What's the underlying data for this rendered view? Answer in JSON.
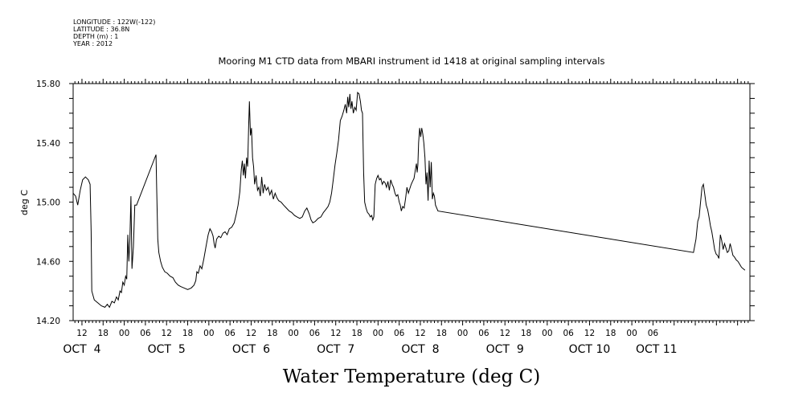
{
  "header": {
    "longitude": "LONGITUDE : 122W(-122)",
    "latitude": "LATITUDE : 36.8N",
    "depth": "DEPTH (m) : 1",
    "year": "YEAR : 2012",
    "title": "Mooring M1 CTD data from MBARI instrument id 1418 at original sampling intervals"
  },
  "chart_data": {
    "type": "line",
    "title": "Mooring M1 CTD data from MBARI instrument id 1418 at original sampling intervals",
    "xlabel": "Water Temperature (deg C)",
    "ylabel": "deg C",
    "xlim_hours": [
      9.5,
      201.5
    ],
    "ylim": [
      14.2,
      15.8
    ],
    "yticks": [
      14.2,
      14.6,
      15.0,
      15.4,
      15.8
    ],
    "ytick_labels": [
      "14.20",
      "14.60",
      "15.00",
      "15.40",
      "15.80"
    ],
    "xtick_labels": [
      "12",
      "18",
      "00",
      "06",
      "12",
      "18",
      "00",
      "06",
      "12",
      "18",
      "00",
      "06",
      "12",
      "18",
      "00",
      "06",
      "12",
      "18",
      "00",
      "06",
      "12",
      "18",
      "00",
      "06",
      "12",
      "18",
      "00",
      "06"
    ],
    "day_labels": [
      "OCT  4",
      "OCT  5",
      "OCT  6",
      "OCT  7",
      "OCT  8",
      "OCT  9",
      "OCT 10",
      "OCT 11"
    ],
    "series": [
      {
        "values": [
          [
            9.5,
            15.06
          ],
          [
            10.2,
            15.04
          ],
          [
            10.8,
            14.98
          ],
          [
            11.5,
            15.08
          ],
          [
            12.2,
            15.15
          ],
          [
            13,
            15.17
          ],
          [
            13.8,
            15.15
          ],
          [
            14.3,
            15.12
          ],
          [
            14.6,
            14.8
          ],
          [
            14.8,
            14.4
          ],
          [
            15.5,
            14.34
          ],
          [
            16.5,
            14.32
          ],
          [
            17.5,
            14.3
          ],
          [
            18.5,
            14.29
          ],
          [
            19.2,
            14.31
          ],
          [
            19.8,
            14.29
          ],
          [
            20.5,
            14.33
          ],
          [
            21.2,
            14.32
          ],
          [
            21.8,
            14.36
          ],
          [
            22.3,
            14.34
          ],
          [
            22.8,
            14.4
          ],
          [
            23.2,
            14.39
          ],
          [
            23.6,
            14.46
          ],
          [
            24,
            14.44
          ],
          [
            24.4,
            14.5
          ],
          [
            24.7,
            14.48
          ],
          [
            25,
            14.78
          ],
          [
            25.3,
            14.6
          ],
          [
            25.6,
            14.75
          ],
          [
            25.9,
            15.04
          ],
          [
            26.2,
            14.55
          ],
          [
            26.6,
            14.7
          ],
          [
            27,
            14.98
          ],
          [
            27.5,
            14.98
          ],
          [
            33,
            15.32
          ],
          [
            33.2,
            15.1
          ],
          [
            33.5,
            14.75
          ],
          [
            33.8,
            14.66
          ],
          [
            34.3,
            14.6
          ],
          [
            34.8,
            14.56
          ],
          [
            35.5,
            14.53
          ],
          [
            36.2,
            14.52
          ],
          [
            37,
            14.5
          ],
          [
            37.8,
            14.49
          ],
          [
            38.5,
            14.46
          ],
          [
            39.3,
            14.44
          ],
          [
            40,
            14.43
          ],
          [
            41,
            14.42
          ],
          [
            42,
            14.41
          ],
          [
            43,
            14.42
          ],
          [
            43.8,
            14.44
          ],
          [
            44.3,
            14.47
          ],
          [
            44.6,
            14.53
          ],
          [
            45,
            14.52
          ],
          [
            45.5,
            14.57
          ],
          [
            46,
            14.55
          ],
          [
            46.6,
            14.62
          ],
          [
            47.2,
            14.7
          ],
          [
            47.8,
            14.78
          ],
          [
            48.3,
            14.82
          ],
          [
            48.8,
            14.8
          ],
          [
            49.2,
            14.77
          ],
          [
            49.5,
            14.72
          ],
          [
            49.8,
            14.69
          ],
          [
            50.2,
            14.75
          ],
          [
            50.8,
            14.77
          ],
          [
            51.4,
            14.76
          ],
          [
            52,
            14.79
          ],
          [
            52.6,
            14.8
          ],
          [
            53.2,
            14.78
          ],
          [
            53.8,
            14.82
          ],
          [
            54.5,
            14.83
          ],
          [
            55.2,
            14.86
          ],
          [
            55.8,
            14.92
          ],
          [
            56.3,
            14.98
          ],
          [
            56.8,
            15.07
          ],
          [
            57.2,
            15.22
          ],
          [
            57.5,
            15.28
          ],
          [
            57.8,
            15.18
          ],
          [
            58.1,
            15.26
          ],
          [
            58.4,
            15.16
          ],
          [
            58.7,
            15.3
          ],
          [
            59,
            15.24
          ],
          [
            59.3,
            15.52
          ],
          [
            59.5,
            15.68
          ],
          [
            59.8,
            15.45
          ],
          [
            60.1,
            15.5
          ],
          [
            60.4,
            15.3
          ],
          [
            60.7,
            15.24
          ],
          [
            61,
            15.12
          ],
          [
            61.4,
            15.18
          ],
          [
            61.8,
            15.08
          ],
          [
            62.2,
            15.1
          ],
          [
            62.6,
            15.04
          ],
          [
            63,
            15.17
          ],
          [
            63.4,
            15.06
          ],
          [
            63.8,
            15.12
          ],
          [
            64.3,
            15.08
          ],
          [
            64.8,
            15.1
          ],
          [
            65.3,
            15.05
          ],
          [
            65.8,
            15.08
          ],
          [
            66.3,
            15.02
          ],
          [
            66.8,
            15.06
          ],
          [
            67.3,
            15.03
          ],
          [
            67.8,
            15.01
          ],
          [
            68.5,
            15
          ],
          [
            69.2,
            14.98
          ],
          [
            70,
            14.96
          ],
          [
            70.8,
            14.94
          ],
          [
            71.5,
            14.93
          ],
          [
            72.3,
            14.91
          ],
          [
            73,
            14.9
          ],
          [
            73.8,
            14.89
          ],
          [
            74.5,
            14.9
          ],
          [
            75.2,
            14.94
          ],
          [
            75.8,
            14.96
          ],
          [
            76.5,
            14.92
          ],
          [
            77,
            14.88
          ],
          [
            77.5,
            14.86
          ],
          [
            78.2,
            14.87
          ],
          [
            79,
            14.89
          ],
          [
            79.8,
            14.9
          ],
          [
            80.5,
            14.93
          ],
          [
            81.2,
            14.95
          ],
          [
            81.8,
            14.97
          ],
          [
            82.3,
            15
          ],
          [
            82.8,
            15.06
          ],
          [
            83.3,
            15.15
          ],
          [
            83.8,
            15.25
          ],
          [
            84.3,
            15.33
          ],
          [
            84.8,
            15.42
          ],
          [
            85.3,
            15.55
          ],
          [
            85.8,
            15.58
          ],
          [
            86.3,
            15.62
          ],
          [
            86.7,
            15.66
          ],
          [
            87.1,
            15.6
          ],
          [
            87.4,
            15.71
          ],
          [
            87.7,
            15.64
          ],
          [
            88,
            15.73
          ],
          [
            88.3,
            15.63
          ],
          [
            88.6,
            15.68
          ],
          [
            89,
            15.6
          ],
          [
            89.4,
            15.64
          ],
          [
            89.8,
            15.62
          ],
          [
            90.2,
            15.74
          ],
          [
            90.6,
            15.73
          ],
          [
            91,
            15.68
          ],
          [
            91.3,
            15.62
          ],
          [
            91.6,
            15.6
          ],
          [
            91.9,
            15.2
          ],
          [
            92.2,
            15
          ],
          [
            92.6,
            14.96
          ],
          [
            93,
            14.93
          ],
          [
            93.4,
            14.92
          ],
          [
            93.8,
            14.9
          ],
          [
            94.2,
            14.91
          ],
          [
            94.5,
            14.88
          ],
          [
            94.8,
            14.9
          ],
          [
            95.2,
            15.12
          ],
          [
            95.6,
            15.16
          ],
          [
            96,
            15.18
          ],
          [
            96.4,
            15.15
          ],
          [
            96.8,
            15.16
          ],
          [
            97.2,
            15.12
          ],
          [
            97.6,
            15.14
          ],
          [
            98,
            15.13
          ],
          [
            98.4,
            15.1
          ],
          [
            98.8,
            15.14
          ],
          [
            99.2,
            15.08
          ],
          [
            99.6,
            15.15
          ],
          [
            100,
            15.12
          ],
          [
            100.4,
            15.1
          ],
          [
            100.8,
            15.06
          ],
          [
            101.2,
            15.04
          ],
          [
            101.6,
            15.05
          ],
          [
            102,
            15
          ],
          [
            102.3,
            14.98
          ],
          [
            102.6,
            14.94
          ],
          [
            103,
            14.97
          ],
          [
            103.4,
            14.96
          ],
          [
            103.8,
            15.02
          ],
          [
            104.2,
            15.1
          ],
          [
            104.6,
            15.06
          ],
          [
            105,
            15.09
          ],
          [
            105.4,
            15.12
          ],
          [
            105.8,
            15.14
          ],
          [
            106.2,
            15.16
          ],
          [
            106.6,
            15.22
          ],
          [
            106.9,
            15.26
          ],
          [
            107.1,
            15.2
          ],
          [
            107.3,
            15.25
          ],
          [
            107.5,
            15.4
          ],
          [
            107.8,
            15.5
          ],
          [
            108.1,
            15.44
          ],
          [
            108.4,
            15.5
          ],
          [
            108.7,
            15.46
          ],
          [
            109,
            15.4
          ],
          [
            109.3,
            15.3
          ],
          [
            109.6,
            15.12
          ],
          [
            109.9,
            15.2
          ],
          [
            110.2,
            15.01
          ],
          [
            110.5,
            15.28
          ],
          [
            110.8,
            15.1
          ],
          [
            111.1,
            15.27
          ],
          [
            111.4,
            15.02
          ],
          [
            111.7,
            15.06
          ],
          [
            112,
            15.04
          ],
          [
            112.3,
            14.98
          ],
          [
            113,
            14.94
          ],
          [
            185.5,
            14.66
          ],
          [
            186.2,
            14.75
          ],
          [
            186.7,
            14.87
          ],
          [
            187.1,
            14.9
          ],
          [
            187.5,
            15.0
          ],
          [
            187.9,
            15.1
          ],
          [
            188.3,
            15.12
          ],
          [
            188.7,
            15.05
          ],
          [
            189.1,
            14.98
          ],
          [
            189.5,
            14.95
          ],
          [
            189.9,
            14.9
          ],
          [
            190.3,
            14.84
          ],
          [
            190.7,
            14.8
          ],
          [
            191.1,
            14.74
          ],
          [
            191.5,
            14.68
          ],
          [
            191.9,
            14.65
          ],
          [
            192.3,
            14.64
          ],
          [
            192.7,
            14.62
          ],
          [
            193.1,
            14.78
          ],
          [
            193.5,
            14.74
          ],
          [
            193.9,
            14.68
          ],
          [
            194.3,
            14.72
          ],
          [
            194.7,
            14.69
          ],
          [
            195.1,
            14.66
          ],
          [
            195.5,
            14.67
          ],
          [
            195.9,
            14.72
          ],
          [
            196.3,
            14.68
          ],
          [
            196.7,
            14.64
          ],
          [
            197.1,
            14.63
          ],
          [
            197.6,
            14.61
          ],
          [
            198.1,
            14.6
          ],
          [
            198.6,
            14.58
          ],
          [
            199.1,
            14.56
          ],
          [
            199.6,
            14.55
          ],
          [
            200.1,
            14.54
          ]
        ]
      }
    ]
  }
}
